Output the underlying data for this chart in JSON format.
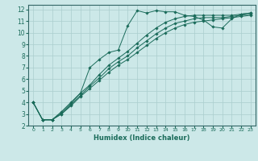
{
  "xlabel": "Humidex (Indice chaleur)",
  "xlim": [
    -0.5,
    23.5
  ],
  "ylim": [
    2,
    12.4
  ],
  "xticks": [
    0,
    1,
    2,
    3,
    4,
    5,
    6,
    7,
    8,
    9,
    10,
    11,
    12,
    13,
    14,
    15,
    16,
    17,
    18,
    19,
    20,
    21,
    22,
    23
  ],
  "yticks": [
    2,
    3,
    4,
    5,
    6,
    7,
    8,
    9,
    10,
    11,
    12
  ],
  "bg_color": "#cce8e8",
  "grid_color": "#aacece",
  "line_color": "#1a6b5a",
  "spine_color": "#336666",
  "line1_x": [
    0,
    1,
    2,
    3,
    4,
    5,
    6,
    7,
    8,
    9,
    10,
    11,
    12,
    13,
    14,
    15,
    16,
    17,
    18,
    19,
    20,
    21,
    22,
    23
  ],
  "line1_y": [
    4.0,
    2.5,
    2.5,
    3.2,
    4.0,
    4.8,
    7.0,
    7.7,
    8.3,
    8.5,
    10.6,
    11.9,
    11.7,
    11.9,
    11.8,
    11.8,
    11.5,
    11.4,
    11.1,
    10.5,
    10.4,
    11.2,
    11.6,
    11.7
  ],
  "line2_x": [
    0,
    1,
    2,
    3,
    4,
    5,
    6,
    7,
    8,
    9,
    10,
    11,
    12,
    13,
    14,
    15,
    16,
    17,
    18,
    19,
    20,
    21,
    22,
    23
  ],
  "line2_y": [
    4.0,
    2.5,
    2.5,
    3.1,
    3.9,
    4.8,
    5.5,
    6.4,
    7.2,
    7.8,
    8.4,
    9.1,
    9.8,
    10.4,
    10.9,
    11.2,
    11.4,
    11.5,
    11.5,
    11.5,
    11.5,
    11.5,
    11.6,
    11.7
  ],
  "line3_x": [
    0,
    1,
    2,
    3,
    4,
    5,
    6,
    7,
    8,
    9,
    10,
    11,
    12,
    13,
    14,
    15,
    16,
    17,
    18,
    19,
    20,
    21,
    22,
    23
  ],
  "line3_y": [
    4.0,
    2.5,
    2.5,
    3.0,
    3.8,
    4.6,
    5.4,
    6.1,
    6.9,
    7.5,
    8.0,
    8.7,
    9.3,
    9.9,
    10.4,
    10.8,
    11.0,
    11.2,
    11.3,
    11.3,
    11.3,
    11.4,
    11.5,
    11.6
  ],
  "line4_x": [
    0,
    1,
    2,
    3,
    4,
    5,
    6,
    7,
    8,
    9,
    10,
    11,
    12,
    13,
    14,
    15,
    16,
    17,
    18,
    19,
    20,
    21,
    22,
    23
  ],
  "line4_y": [
    4.0,
    2.5,
    2.5,
    3.0,
    3.7,
    4.5,
    5.2,
    5.9,
    6.6,
    7.2,
    7.7,
    8.3,
    8.9,
    9.5,
    10.0,
    10.4,
    10.7,
    10.9,
    11.0,
    11.1,
    11.2,
    11.3,
    11.4,
    11.5
  ]
}
